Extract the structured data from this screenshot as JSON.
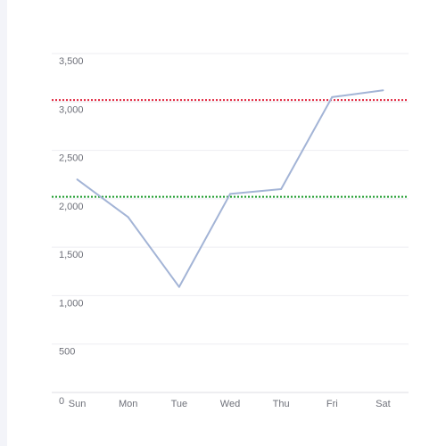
{
  "chart_data": {
    "type": "line",
    "categories": [
      "Sun",
      "Mon",
      "Tue",
      "Wed",
      "Thu",
      "Fri",
      "Sat"
    ],
    "series": [
      {
        "values": [
          2200,
          1810,
          1090,
          2050,
          2100,
          3050,
          3120
        ],
        "color": "#a3b4d6"
      }
    ],
    "y_ticks": [
      "0",
      "500",
      "1,000",
      "1,500",
      "2,000",
      "2,500",
      "3,000",
      "3,500"
    ],
    "ylim": [
      0,
      3500
    ],
    "reference_lines": [
      {
        "value": 3020,
        "color": "#e0203a",
        "style": "dotted"
      },
      {
        "value": 2020,
        "color": "#1a9a2a",
        "style": "dotted"
      }
    ],
    "grid": true,
    "title": "",
    "xlabel": "",
    "ylabel": ""
  }
}
